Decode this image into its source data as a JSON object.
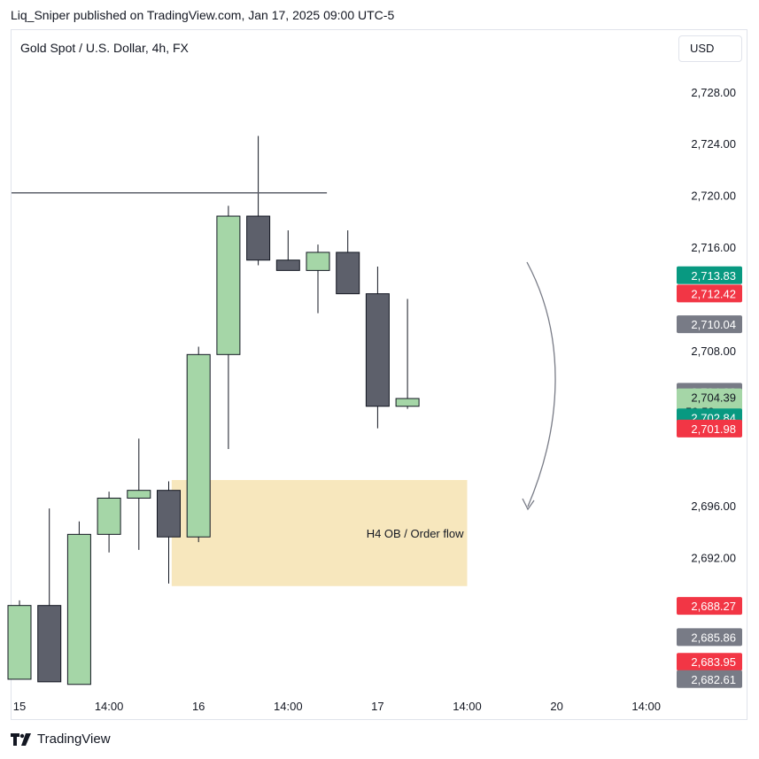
{
  "header": {
    "byline": "Liq_Sniper published on TradingView.com, Jan 17, 2025 09:00 UTC-5"
  },
  "symbol_title": "Gold Spot / U.S. Dollar, 4h, FX",
  "currency_button": "USD",
  "footer": {
    "brand": "TradingView"
  },
  "colors": {
    "up_candle": "#a5d6a7",
    "down_candle": "#5d606b",
    "zone_fill": "#f7e7bd",
    "tag_green": "#089981",
    "tag_red": "#f23645",
    "tag_gray": "#787b86",
    "tag_light_green": "#a5d6a7"
  },
  "chart_data": {
    "type": "candlestick",
    "y_range": [
      2681.5,
      2731.0
    ],
    "y_ticks": [
      "2,728.00",
      "2,724.00",
      "2,720.00",
      "2,716.00",
      "2,708.00",
      "2,696.00",
      "2,692.00"
    ],
    "y_tick_values": [
      2728,
      2724,
      2720,
      2716,
      2708,
      2696,
      2692
    ],
    "x_ticks": [
      "15",
      "14:00",
      "16",
      "14:00",
      "17",
      "14:00",
      "20",
      "14:00"
    ],
    "x_tick_slots": [
      0,
      3,
      6,
      9,
      12,
      15,
      18,
      21
    ],
    "candles": [
      {
        "o": 2682.6,
        "h": 2688.7,
        "l": 2682.6,
        "c": 2688.3
      },
      {
        "o": 2688.3,
        "h": 2695.8,
        "l": 2682.4,
        "c": 2682.4
      },
      {
        "o": 2682.2,
        "h": 2694.8,
        "l": 2682.2,
        "c": 2693.8
      },
      {
        "o": 2693.8,
        "h": 2697.1,
        "l": 2692.4,
        "c": 2696.6
      },
      {
        "o": 2696.6,
        "h": 2701.2,
        "l": 2692.6,
        "c": 2697.2
      },
      {
        "o": 2697.2,
        "h": 2697.9,
        "l": 2690.0,
        "c": 2693.6
      },
      {
        "o": 2693.6,
        "h": 2708.3,
        "l": 2693.2,
        "c": 2707.7
      },
      {
        "o": 2707.7,
        "h": 2719.2,
        "l": 2700.4,
        "c": 2718.4
      },
      {
        "o": 2718.4,
        "h": 2724.6,
        "l": 2714.6,
        "c": 2715.0
      },
      {
        "o": 2715.0,
        "h": 2717.3,
        "l": 2714.5,
        "c": 2714.2
      },
      {
        "o": 2714.2,
        "h": 2716.2,
        "l": 2710.9,
        "c": 2715.6
      },
      {
        "o": 2715.6,
        "h": 2717.3,
        "l": 2712.5,
        "c": 2712.4
      },
      {
        "o": 2712.4,
        "h": 2714.5,
        "l": 2702.0,
        "c": 2703.7
      },
      {
        "o": 2703.7,
        "h": 2712.0,
        "l": 2703.5,
        "c": 2704.3
      }
    ],
    "horizontal_line": {
      "y": 2720.2,
      "from_slot": 0,
      "to_slot": 10.3
    },
    "zone": {
      "label": "H4 OB / Order flow",
      "y_top": 2698.0,
      "y_bottom": 2689.8,
      "from_slot": 5.1,
      "to_slot": 15.0
    },
    "price_tags": [
      {
        "label": "2,713.83",
        "value": 2713.83,
        "color": "green"
      },
      {
        "label": "2,712.42",
        "value": 2712.42,
        "color": "red"
      },
      {
        "label": "2,710.04",
        "value": 2710.04,
        "color": "gray"
      },
      {
        "label": "2,704.82",
        "value": 2704.82,
        "color": "gray"
      },
      {
        "label": "2,704.39",
        "value": 2704.39,
        "color": "light_green",
        "sub": "59:58"
      },
      {
        "label": "2,702.84",
        "value": 2702.84,
        "color": "green"
      },
      {
        "label": "2,701.98",
        "value": 2701.98,
        "color": "red"
      },
      {
        "label": "2,688.27",
        "value": 2688.27,
        "color": "red"
      },
      {
        "label": "2,685.86",
        "value": 2685.86,
        "color": "gray"
      },
      {
        "label": "2,683.95",
        "value": 2683.95,
        "color": "red"
      },
      {
        "label": "2,682.61",
        "value": 2682.61,
        "color": "gray"
      }
    ]
  }
}
